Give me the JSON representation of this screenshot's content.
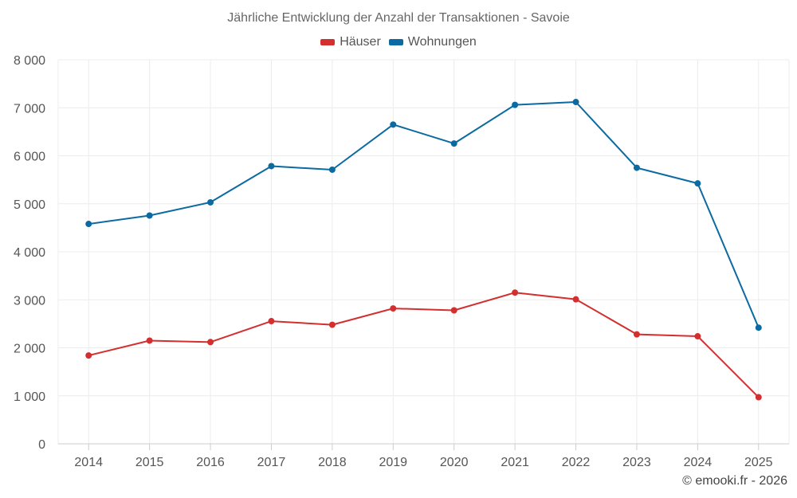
{
  "chart_data": {
    "type": "line",
    "title": "Jährliche Entwicklung der Anzahl der Transaktionen - Savoie",
    "categories": [
      "2014",
      "2015",
      "2016",
      "2017",
      "2018",
      "2019",
      "2020",
      "2021",
      "2022",
      "2023",
      "2024",
      "2025"
    ],
    "series": [
      {
        "name": "Häuser",
        "color": "#d32f2f",
        "values": [
          1840,
          2150,
          2120,
          2555,
          2480,
          2820,
          2780,
          3150,
          3010,
          2280,
          2240,
          970
        ]
      },
      {
        "name": "Wohnungen",
        "color": "#0b6aa2",
        "values": [
          4580,
          4755,
          5030,
          5785,
          5710,
          6650,
          6255,
          7060,
          7120,
          5750,
          5425,
          2420
        ]
      }
    ],
    "ylim": [
      0,
      8000
    ],
    "yticks": [
      0,
      1000,
      2000,
      3000,
      4000,
      5000,
      6000,
      7000,
      8000
    ],
    "ytick_labels": [
      "0",
      "1 000",
      "2 000",
      "3 000",
      "4 000",
      "5 000",
      "6 000",
      "7 000",
      "8 000"
    ],
    "xlabel": "",
    "ylabel": "",
    "grid": true,
    "legend_position": "top-center"
  },
  "credit": "© emooki.fr - 2026"
}
